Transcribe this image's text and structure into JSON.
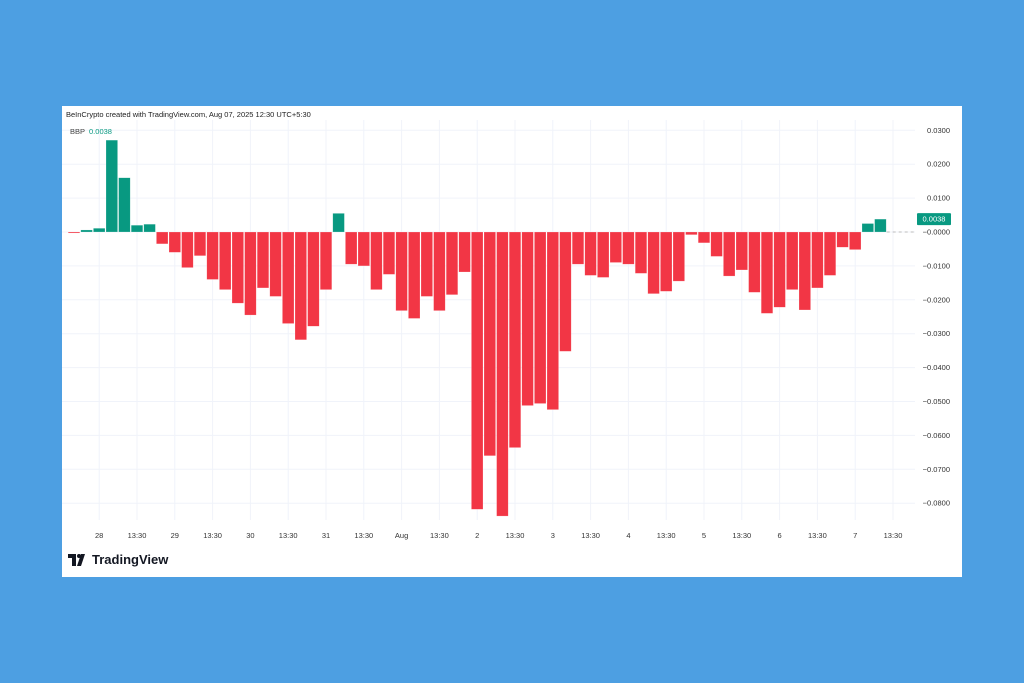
{
  "credit": "BeInCrypto created with TradingView.com, Aug 07, 2025 12:30 UTC+5:30",
  "legend": {
    "name": "BBP",
    "value": "0.0038"
  },
  "logo": {
    "text": "TradingView",
    "icon": "tradingview-logo-icon"
  },
  "colors": {
    "positive": "#089981",
    "negative": "#f23645",
    "background": "#4d9fe2"
  },
  "chart_data": {
    "type": "bar",
    "title": "",
    "series": [
      {
        "name": "BBP",
        "values": [
          -0.0003,
          0.0006,
          0.0011,
          0.0271,
          0.016,
          0.002,
          0.0023,
          -0.0035,
          -0.006,
          -0.0105,
          -0.007,
          -0.014,
          -0.017,
          -0.021,
          -0.0245,
          -0.0165,
          -0.019,
          -0.027,
          -0.0318,
          -0.0278,
          -0.017,
          0.0055,
          -0.0095,
          -0.01,
          -0.017,
          -0.0125,
          -0.0232,
          -0.0255,
          -0.019,
          -0.0232,
          -0.0185,
          -0.0118,
          -0.0818,
          -0.066,
          -0.0838,
          -0.0636,
          -0.0512,
          -0.0506,
          -0.0524,
          -0.0352,
          -0.0095,
          -0.0128,
          -0.0134,
          -0.009,
          -0.0095,
          -0.0122,
          -0.0182,
          -0.0175,
          -0.0145,
          -0.0008,
          -0.0032,
          -0.0072,
          -0.013,
          -0.0112,
          -0.0178,
          -0.024,
          -0.0222,
          -0.017,
          -0.023,
          -0.0165,
          -0.0128,
          -0.0045,
          -0.0052,
          0.0025,
          0.0038
        ]
      }
    ],
    "x_tick_labels": [
      "28",
      "13:30",
      "29",
      "13:30",
      "30",
      "13:30",
      "31",
      "13:30",
      "Aug",
      "13:30",
      "2",
      "13:30",
      "3",
      "13:30",
      "4",
      "13:30",
      "5",
      "13:30",
      "6",
      "13:30",
      "7",
      "13:30"
    ],
    "y_tick_labels": [
      "0.0300",
      "0.0200",
      "0.0100",
      "−0.0000",
      "−0.0100",
      "−0.0200",
      "−0.0300",
      "−0.0400",
      "−0.0500",
      "−0.0600",
      "−0.0700",
      "−0.0800"
    ],
    "y_ticks": [
      0.03,
      0.02,
      0.01,
      0,
      -0.01,
      -0.02,
      -0.03,
      -0.04,
      -0.05,
      -0.06,
      -0.07,
      -0.08
    ],
    "ylim": [
      -0.088,
      0.033
    ],
    "last_value_label": "0.0038",
    "grid": true,
    "legend_placement": "top-left"
  }
}
